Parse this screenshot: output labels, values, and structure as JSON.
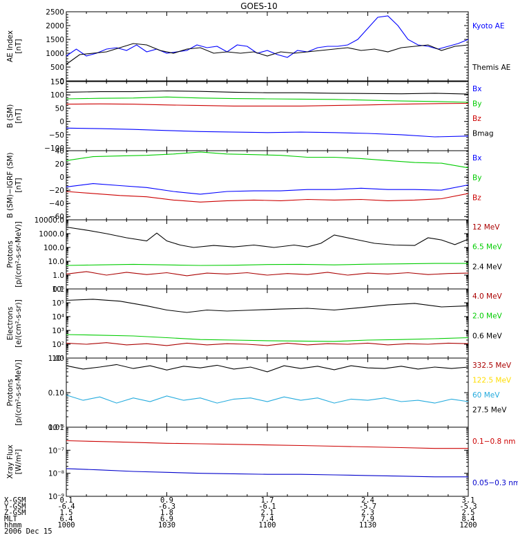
{
  "title": "GOES-10",
  "x_axis": {
    "row_labels": [
      "X-GSM",
      "Y-GSM",
      "Z-GSM",
      "MLT",
      "hhmm"
    ],
    "date_label": "2006 Dec 15",
    "columns": [
      {
        "values": [
          "0.1",
          "-6.4",
          "1.5",
          "6.4",
          "1000"
        ]
      },
      {
        "values": [
          "0.9",
          "-6.3",
          "1.8",
          "6.9",
          "1030"
        ]
      },
      {
        "values": [
          "1.7",
          "-6.1",
          "2.1",
          "7.4",
          "1100"
        ]
      },
      {
        "values": [
          "2.4",
          "-5.7",
          "2.3",
          "7.9",
          "1130"
        ]
      },
      {
        "values": [
          "3.1",
          "-5.3",
          "2.5",
          "8.4",
          "1200"
        ]
      }
    ]
  },
  "chart_data": [
    {
      "type": "line",
      "ylabel_lines": [
        "AE Index",
        "[nT]"
      ],
      "yscale": "linear",
      "ylim": [
        0,
        2500
      ],
      "yticks": [
        0,
        500,
        1000,
        1500,
        2000,
        2500
      ],
      "ytick_labels": [
        "0",
        "500",
        "1000",
        "1500",
        "2000",
        "2500"
      ],
      "series": [
        {
          "name": "Kyoto AE",
          "color": "#0000ff",
          "x": [
            0,
            3,
            6,
            9,
            12,
            15,
            18,
            21,
            24,
            27,
            30,
            33,
            36,
            39,
            42,
            45,
            48,
            51,
            54,
            57,
            60,
            63,
            66,
            69,
            72,
            75,
            78,
            81,
            84,
            87,
            90,
            93,
            96,
            99,
            102,
            105,
            108,
            111,
            114,
            117,
            120
          ],
          "y": [
            900,
            1150,
            900,
            1000,
            1150,
            1200,
            1100,
            1300,
            1050,
            1150,
            1000,
            1050,
            1100,
            1300,
            1200,
            1250,
            1050,
            1300,
            1250,
            1000,
            1100,
            950,
            850,
            1100,
            1050,
            1200,
            1250,
            1250,
            1300,
            1500,
            1900,
            2300,
            2350,
            2000,
            1500,
            1300,
            1250,
            1150,
            1250,
            1350,
            1500
          ]
        },
        {
          "name": "Themis AE",
          "color": "#000000",
          "x": [
            0,
            4,
            8,
            12,
            16,
            20,
            24,
            28,
            32,
            36,
            40,
            44,
            48,
            52,
            56,
            60,
            64,
            68,
            72,
            76,
            80,
            84,
            88,
            92,
            96,
            100,
            104,
            108,
            112,
            116,
            120
          ],
          "y": [
            600,
            950,
            1000,
            1050,
            1200,
            1350,
            1300,
            1100,
            1000,
            1150,
            1200,
            1000,
            1050,
            1000,
            1050,
            900,
            1050,
            1000,
            1050,
            1100,
            1150,
            1200,
            1100,
            1150,
            1050,
            1200,
            1250,
            1300,
            1100,
            1250,
            1300
          ]
        }
      ]
    },
    {
      "type": "line",
      "ylabel_lines": [
        "B (SM)",
        "[nT]"
      ],
      "yscale": "linear",
      "ylim": [
        -110,
        150
      ],
      "yticks": [
        -100,
        -50,
        0,
        50,
        100,
        150
      ],
      "ytick_labels": [
        "−100",
        "−50",
        "0",
        "50",
        "100",
        "150"
      ],
      "series": [
        {
          "name": "Bx",
          "color": "#0000ff",
          "x": [
            0,
            10,
            20,
            30,
            40,
            50,
            60,
            70,
            80,
            90,
            100,
            110,
            120
          ],
          "y": [
            -25,
            -27,
            -30,
            -34,
            -38,
            -40,
            -42,
            -40,
            -42,
            -45,
            -50,
            -58,
            -55
          ]
        },
        {
          "name": "By",
          "color": "#00cc00",
          "x": [
            0,
            10,
            20,
            30,
            40,
            50,
            60,
            70,
            80,
            90,
            100,
            110,
            120
          ],
          "y": [
            85,
            87,
            88,
            92,
            88,
            86,
            85,
            84,
            83,
            80,
            77,
            75,
            72
          ]
        },
        {
          "name": "Bz",
          "color": "#cc0000",
          "x": [
            0,
            10,
            20,
            30,
            40,
            50,
            60,
            70,
            80,
            90,
            100,
            110,
            120
          ],
          "y": [
            65,
            66,
            65,
            62,
            60,
            58,
            58,
            58,
            60,
            62,
            65,
            67,
            68
          ]
        },
        {
          "name": "Bmag",
          "color": "#000000",
          "x": [
            0,
            10,
            20,
            30,
            40,
            50,
            60,
            70,
            80,
            90,
            100,
            110,
            120
          ],
          "y": [
            110,
            112,
            112,
            115,
            113,
            110,
            108,
            108,
            106,
            105,
            104,
            106,
            103
          ]
        }
      ]
    },
    {
      "type": "line",
      "ylabel_lines": [
        "B (SM)−IGRF (SM)",
        "[nT]"
      ],
      "yscale": "linear",
      "ylim": [
        -65,
        40
      ],
      "yticks": [
        -60,
        -40,
        -20,
        0,
        20,
        40
      ],
      "ytick_labels": [
        "−60",
        "−40",
        "−20",
        "0",
        "20",
        "40"
      ],
      "series": [
        {
          "name": "Bx",
          "color": "#0000ff",
          "x": [
            0,
            8,
            16,
            24,
            32,
            40,
            48,
            56,
            64,
            72,
            80,
            88,
            96,
            104,
            112,
            120
          ],
          "y": [
            -15,
            -10,
            -13,
            -16,
            -22,
            -26,
            -22,
            -21,
            -21,
            -19,
            -19,
            -17,
            -19,
            -19,
            -20,
            -12
          ]
        },
        {
          "name": "By",
          "color": "#00cc00",
          "x": [
            0,
            8,
            16,
            24,
            32,
            40,
            48,
            56,
            64,
            72,
            80,
            88,
            96,
            104,
            112,
            120
          ],
          "y": [
            25,
            31,
            32,
            33,
            35,
            38,
            35,
            34,
            33,
            30,
            30,
            28,
            25,
            22,
            21,
            14
          ]
        },
        {
          "name": "Bz",
          "color": "#cc0000",
          "x": [
            0,
            8,
            16,
            24,
            32,
            40,
            48,
            56,
            64,
            72,
            80,
            88,
            96,
            104,
            112,
            120
          ],
          "y": [
            -22,
            -25,
            -28,
            -30,
            -35,
            -38,
            -36,
            -35,
            -36,
            -34,
            -35,
            -34,
            -36,
            -35,
            -33,
            -25
          ]
        }
      ]
    },
    {
      "type": "line",
      "ylabel_lines": [
        "Protons",
        "[p/(cm²-s-sr-MeV)]"
      ],
      "yscale": "log",
      "ylim": [
        0.1,
        10000
      ],
      "yticks": [
        0.1,
        1,
        10,
        100,
        1000,
        10000
      ],
      "ytick_labels": [
        "0.1",
        "1.0",
        "10.0",
        "100.0",
        "1000.0",
        "10000.0"
      ],
      "series": [
        {
          "name": "12 MeV",
          "color": "#aa0000",
          "x": [
            0,
            6,
            12,
            18,
            24,
            30,
            36,
            42,
            48,
            54,
            60,
            66,
            72,
            78,
            84,
            90,
            96,
            102,
            108,
            114,
            120
          ],
          "y": [
            1.2,
            1.8,
            1.0,
            1.6,
            1.1,
            1.5,
            0.9,
            1.4,
            1.2,
            1.5,
            1.0,
            1.3,
            1.1,
            1.6,
            1.0,
            1.4,
            1.2,
            1.5,
            1.1,
            1.3,
            1.4
          ]
        },
        {
          "name": "6.5 MeV",
          "color": "#00cc00",
          "x": [
            0,
            10,
            20,
            30,
            40,
            50,
            60,
            70,
            80,
            90,
            100,
            110,
            120
          ],
          "y": [
            5,
            5.5,
            6,
            5.5,
            5,
            5.2,
            5.8,
            6,
            5.5,
            6.2,
            6.5,
            7,
            7
          ]
        },
        {
          "name": "2.4 MeV",
          "color": "#000000",
          "x": [
            0,
            6,
            12,
            18,
            24,
            27,
            30,
            34,
            38,
            44,
            50,
            56,
            62,
            68,
            72,
            76,
            80,
            86,
            92,
            98,
            104,
            108,
            112,
            116,
            120
          ],
          "y": [
            3000,
            1800,
            1000,
            500,
            300,
            1100,
            300,
            150,
            100,
            140,
            110,
            150,
            100,
            150,
            110,
            200,
            800,
            400,
            200,
            150,
            140,
            500,
            350,
            160,
            400
          ]
        }
      ]
    },
    {
      "type": "line",
      "ylabel_lines": [
        "Electrons",
        "[e/(cm²-s-sr)]"
      ],
      "yscale": "log",
      "ylim": [
        10,
        1000000
      ],
      "yticks": [
        10,
        100,
        1000,
        10000,
        100000,
        1000000
      ],
      "ytick_labels": [
        "10¹",
        "10²",
        "10³",
        "10⁴",
        "10⁵",
        "10⁶"
      ],
      "series": [
        {
          "name": "4.0 MeV",
          "color": "#aa0000",
          "x": [
            0,
            6,
            12,
            18,
            24,
            30,
            36,
            42,
            48,
            54,
            60,
            66,
            72,
            78,
            84,
            90,
            96,
            102,
            108,
            114,
            120
          ],
          "y": [
            120,
            100,
            130,
            90,
            110,
            80,
            120,
            90,
            110,
            100,
            80,
            120,
            90,
            110,
            100,
            120,
            90,
            110,
            100,
            120,
            110
          ]
        },
        {
          "name": "2.0 MeV",
          "color": "#00cc00",
          "x": [
            0,
            10,
            20,
            30,
            40,
            50,
            60,
            70,
            80,
            90,
            100,
            110,
            120
          ],
          "y": [
            500,
            450,
            400,
            300,
            220,
            200,
            180,
            170,
            160,
            200,
            220,
            250,
            300
          ]
        },
        {
          "name": "0.6 MeV",
          "color": "#000000",
          "x": [
            0,
            8,
            16,
            24,
            30,
            36,
            42,
            48,
            56,
            64,
            72,
            80,
            88,
            96,
            104,
            112,
            120
          ],
          "y": [
            150000,
            180000,
            130000,
            60000,
            30000,
            20000,
            30000,
            25000,
            30000,
            35000,
            40000,
            30000,
            45000,
            70000,
            90000,
            50000,
            60000
          ]
        }
      ]
    },
    {
      "type": "line",
      "ylabel_lines": [
        "Protons",
        "[p/(cm²-s-sr-MeV)]"
      ],
      "yscale": "log",
      "ylim": [
        0.01,
        1.0
      ],
      "yticks": [
        0.01,
        0.1,
        1.0
      ],
      "ytick_labels": [
        "0.01",
        "0.10",
        "1.00"
      ],
      "series": [
        {
          "name": "332.5 MeV",
          "color": "#aa0000",
          "x": [],
          "y": []
        },
        {
          "name": "122.5 MeV",
          "color": "#ffdd00",
          "x": [],
          "y": []
        },
        {
          "name": "60 MeV",
          "color": "#22aadd",
          "x": [
            0,
            5,
            10,
            15,
            20,
            25,
            30,
            35,
            40,
            45,
            50,
            55,
            60,
            65,
            70,
            75,
            80,
            85,
            90,
            95,
            100,
            105,
            110,
            115,
            120
          ],
          "y": [
            0.085,
            0.06,
            0.075,
            0.05,
            0.07,
            0.055,
            0.08,
            0.06,
            0.07,
            0.05,
            0.065,
            0.07,
            0.055,
            0.075,
            0.06,
            0.07,
            0.05,
            0.065,
            0.06,
            0.07,
            0.055,
            0.06,
            0.05,
            0.065,
            0.055
          ]
        },
        {
          "name": "27.5 MeV",
          "color": "#000000",
          "x": [
            0,
            5,
            10,
            15,
            20,
            25,
            30,
            35,
            40,
            45,
            50,
            55,
            60,
            65,
            70,
            75,
            80,
            85,
            90,
            95,
            100,
            105,
            110,
            115,
            120
          ],
          "y": [
            0.6,
            0.48,
            0.55,
            0.65,
            0.5,
            0.6,
            0.45,
            0.58,
            0.52,
            0.62,
            0.48,
            0.55,
            0.4,
            0.6,
            0.5,
            0.58,
            0.46,
            0.6,
            0.52,
            0.5,
            0.58,
            0.48,
            0.55,
            0.5,
            0.55
          ]
        }
      ]
    },
    {
      "type": "line",
      "ylabel_lines": [
        "Xray Flux",
        "[W/m²]"
      ],
      "yscale": "log",
      "ylim": [
        1e-09,
        1e-06
      ],
      "yticks": [
        1e-09,
        1e-08,
        1e-07,
        1e-06
      ],
      "ytick_labels": [
        "10⁻⁹",
        "10⁻⁸",
        "10⁻⁷",
        "10⁻⁶"
      ],
      "series": [
        {
          "name": "0.1−0.8 nm",
          "color": "#cc0000",
          "x": [
            0,
            10,
            20,
            30,
            40,
            50,
            60,
            70,
            80,
            90,
            100,
            110,
            120
          ],
          "y": [
            2.6e-07,
            2.4e-07,
            2.2e-07,
            2e-07,
            1.9e-07,
            1.8e-07,
            1.7e-07,
            1.6e-07,
            1.5e-07,
            1.4e-07,
            1.3e-07,
            1.2e-07,
            1.2e-07
          ]
        },
        {
          "name": "0.05−0.3 nm",
          "color": "#0000cc",
          "x": [
            0,
            10,
            20,
            30,
            40,
            50,
            60,
            70,
            80,
            90,
            100,
            110,
            120
          ],
          "y": [
            1.6e-08,
            1.4e-08,
            1.2e-08,
            1.1e-08,
            1e-08,
            9.5e-09,
            9e-09,
            9e-09,
            8.5e-09,
            8e-09,
            7.5e-09,
            7e-09,
            7e-09
          ]
        }
      ]
    }
  ]
}
